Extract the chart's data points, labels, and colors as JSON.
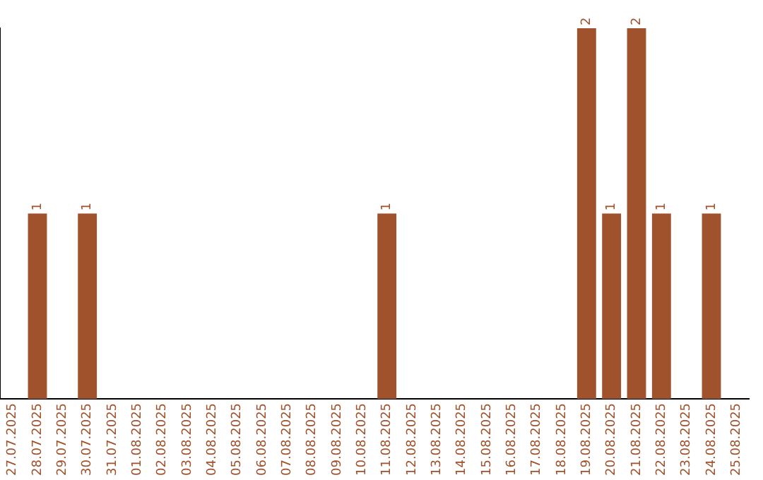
{
  "chart_data": {
    "type": "bar",
    "categories": [
      "27.07.2025",
      "28.07.2025",
      "29.07.2025",
      "30.07.2025",
      "31.07.2025",
      "01.08.2025",
      "02.08.2025",
      "03.08.2025",
      "04.08.2025",
      "05.08.2025",
      "06.08.2025",
      "07.08.2025",
      "08.08.2025",
      "09.08.2025",
      "10.08.2025",
      "11.08.2025",
      "12.08.2025",
      "13.08.2025",
      "14.08.2025",
      "15.08.2025",
      "16.08.2025",
      "17.08.2025",
      "18.08.2025",
      "19.08.2025",
      "20.08.2025",
      "21.08.2025",
      "22.08.2025",
      "23.08.2025",
      "24.08.2025",
      "25.08.2025"
    ],
    "values": [
      0,
      1,
      0,
      1,
      0,
      0,
      0,
      0,
      0,
      0,
      0,
      0,
      0,
      0,
      0,
      1,
      0,
      0,
      0,
      0,
      0,
      0,
      0,
      2,
      1,
      2,
      1,
      0,
      1,
      0
    ],
    "value_labels": [
      null,
      "1",
      null,
      "1",
      null,
      null,
      null,
      null,
      null,
      null,
      null,
      null,
      null,
      null,
      null,
      "1",
      null,
      null,
      null,
      null,
      null,
      null,
      null,
      "2",
      "1",
      "2",
      "1",
      null,
      "1",
      null
    ],
    "color": "#a0522d",
    "grid": false,
    "legend": false
  }
}
